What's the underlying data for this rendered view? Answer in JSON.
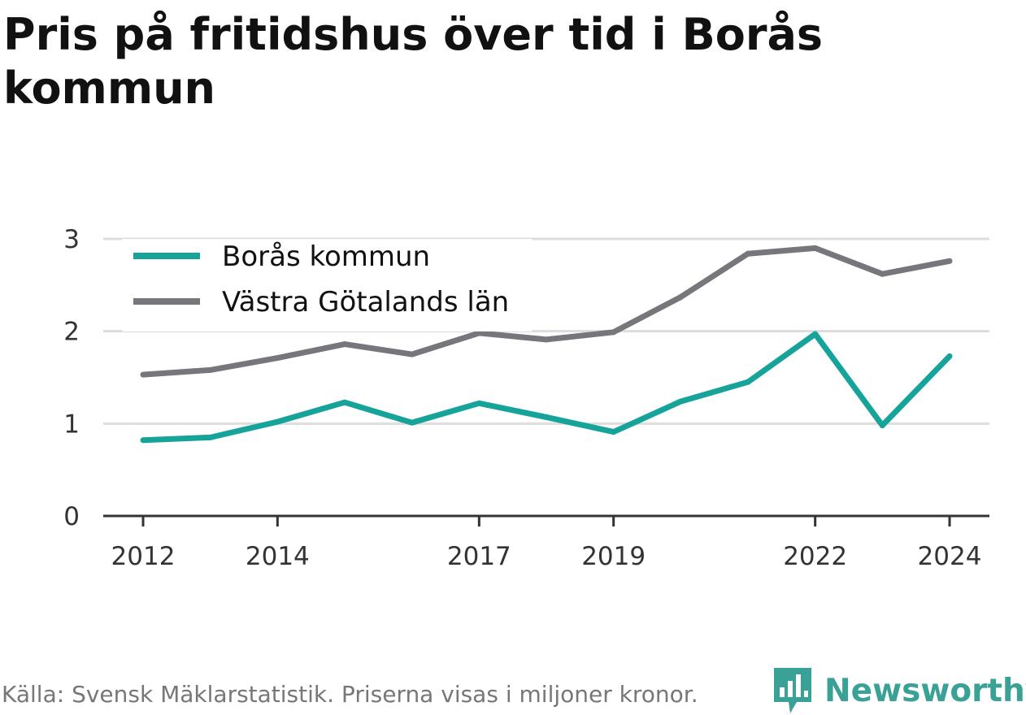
{
  "title": "Pris på fritidshus över tid i Borås kommun",
  "source": "Källa: Svensk Mäklarstatistik. Priserna visas i miljoner kronor.",
  "brand": "Newsworthy",
  "colors": {
    "boras": "#16a39a",
    "vg": "#76767c",
    "grid": "#dddddd",
    "axis": "#333333",
    "brand": "#3aa197"
  },
  "chart_data": {
    "type": "line",
    "title": "Pris på fritidshus över tid i Borås kommun",
    "xlabel": "",
    "ylabel": "",
    "x": [
      2012,
      2013,
      2014,
      2015,
      2016,
      2017,
      2018,
      2019,
      2020,
      2021,
      2022,
      2023,
      2024
    ],
    "x_ticks": [
      2012,
      2014,
      2017,
      2019,
      2022,
      2024
    ],
    "y_ticks": [
      0,
      1,
      2,
      3
    ],
    "ylim": [
      0,
      3
    ],
    "grid": true,
    "legend": "top-left",
    "series": [
      {
        "name": "Borås kommun",
        "color": "#16a39a",
        "values": [
          0.82,
          0.85,
          1.02,
          1.23,
          1.01,
          1.22,
          1.07,
          0.91,
          1.24,
          1.45,
          1.97,
          0.98,
          1.73
        ]
      },
      {
        "name": "Västra Götalands län",
        "color": "#76767c",
        "values": [
          1.53,
          1.58,
          1.71,
          1.86,
          1.75,
          1.98,
          1.91,
          1.99,
          2.37,
          2.84,
          2.9,
          2.62,
          2.76
        ]
      }
    ]
  }
}
